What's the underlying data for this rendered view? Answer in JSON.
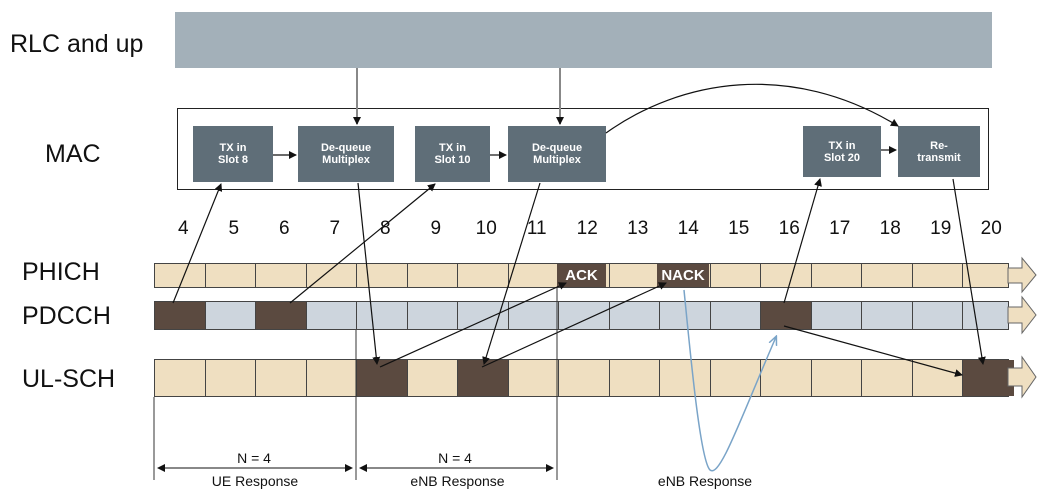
{
  "layers": {
    "rlc_label": "RLC and up",
    "mac_label": "MAC"
  },
  "mac_boxes": [
    {
      "line1": "TX in",
      "line2": "Slot 8"
    },
    {
      "line1": "De-queue",
      "line2": "Multiplex"
    },
    {
      "line1": "TX in",
      "line2": "Slot 10"
    },
    {
      "line1": "De-queue",
      "line2": "Multiplex"
    },
    {
      "line1": "TX in",
      "line2": "Slot 20"
    },
    {
      "line1": "Re-",
      "line2": "transmit"
    }
  ],
  "subframes": [
    "4",
    "5",
    "6",
    "7",
    "8",
    "9",
    "10",
    "11",
    "12",
    "13",
    "14",
    "15",
    "16",
    "17",
    "18",
    "19",
    "20"
  ],
  "channels": {
    "phich": "PHICH",
    "pdcch": "PDCCH",
    "ulsch": "UL-SCH"
  },
  "tags": {
    "ack": "ACK",
    "nack": "NACK"
  },
  "timing": {
    "n1": "N = 4",
    "r1": "UE Response",
    "n2": "N = 4",
    "r2": "eNB Response",
    "r3": "eNB Response"
  },
  "colors": {
    "rlc_bar": "#a3b0b9",
    "mac_box": "#5f6e78",
    "phich_fill": "#efdfc1",
    "pdcch_fill": "#cdd5dd",
    "ulsch_fill": "#efdfc1",
    "active": "#5b4a40"
  }
}
